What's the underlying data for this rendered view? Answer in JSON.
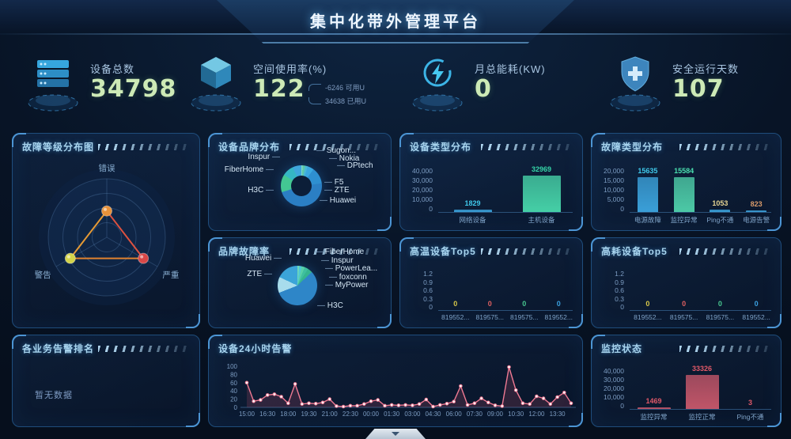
{
  "header": {
    "title": "集中化带外管理平台"
  },
  "kpis": [
    {
      "icon": "server-icon",
      "label": "设备总数",
      "value": "34798"
    },
    {
      "icon": "cube-icon",
      "label": "空间使用率(%)",
      "value": "122",
      "legend": [
        {
          "text": "-6246 可用U"
        },
        {
          "text": "34638 已用U"
        }
      ]
    },
    {
      "icon": "energy-icon",
      "label": "月总能耗(KW)",
      "value": "0"
    },
    {
      "icon": "shield-icon",
      "label": "安全运行天数",
      "value": "107"
    }
  ],
  "footer": {
    "collapse_tab": "chevron-down"
  },
  "colors": {
    "accent_cyan": "#3fc6f0",
    "bar_blue": "#3a9fd8",
    "bar_green": "#4cc9a6",
    "bar_red": "#c05568",
    "line_pink": "#ef7a93",
    "kpi_value_green": "#cdeab6",
    "panel_border": "#1f4d7c",
    "panel_title": "#a8d4ee"
  },
  "chart_data": [
    {
      "id": "fault_level",
      "type": "radar",
      "title": "故障等级分布图",
      "axes": [
        "错误",
        "严重",
        "警告"
      ],
      "values_pct": [
        45,
        72,
        72
      ],
      "max": 100,
      "point_colors": [
        "#e8923a",
        "#d84848",
        "#d4d44a"
      ],
      "note": "radius values estimated from plot"
    },
    {
      "id": "device_brand",
      "type": "pie",
      "variant": "donut",
      "title": "设备品牌分布",
      "series": [
        {
          "name": "Sugon...",
          "pct": 1,
          "color": "#7fd8c8"
        },
        {
          "name": "Nokia",
          "pct": 2,
          "color": "#5bc8a8"
        },
        {
          "name": "DPtech",
          "pct": 2,
          "color": "#49b8d8"
        },
        {
          "name": "F5",
          "pct": 5,
          "color": "#3aa8e0"
        },
        {
          "name": "ZTE",
          "pct": 13,
          "color": "#2e8fd0"
        },
        {
          "name": "Huawei",
          "pct": 47,
          "color": "#2b7fc4"
        },
        {
          "name": "H3C",
          "pct": 14,
          "color": "#43c793"
        },
        {
          "name": "FiberHome",
          "pct": 9,
          "color": "#35b6c4"
        },
        {
          "name": "Inspur",
          "pct": 7,
          "color": "#3fa6dc"
        }
      ],
      "note": "percentages estimated from arc sizes"
    },
    {
      "id": "device_type",
      "type": "bar",
      "title": "设备类型分布",
      "categories": [
        "网络设备",
        "主机设备"
      ],
      "values": [
        1829,
        32969
      ],
      "value_labels": [
        "1829",
        "32969"
      ],
      "ymax": 40000,
      "yticks": [
        "40,000",
        "30,000",
        "20,000",
        "10,000",
        "0"
      ],
      "bar_colors": [
        "#3a9fd8",
        "#45cfa6"
      ],
      "value_colors": [
        "#3fc8ea",
        "#35d4a8"
      ]
    },
    {
      "id": "fault_type",
      "type": "bar",
      "title": "故障类型分布",
      "categories": [
        "电源故障",
        "监控异常",
        "Ping不通",
        "电源告警"
      ],
      "values": [
        15635,
        15584,
        1053,
        823
      ],
      "value_labels": [
        "15635",
        "15584",
        "1053",
        "823"
      ],
      "ymax": 20000,
      "yticks": [
        "20,000",
        "15,000",
        "10,000",
        "5,000",
        "0"
      ],
      "bar_colors": [
        "#3a9fd8",
        "#4cc9a6",
        "#3a9fd8",
        "#3a9fd8"
      ],
      "value_colors": [
        "#3fc8ea",
        "#4ae0b0",
        "#e5d492",
        "#d99a6a"
      ]
    },
    {
      "id": "brand_fault_rate",
      "type": "pie",
      "variant": "pie",
      "title": "品牌故障率",
      "series": [
        {
          "name": "FiberHome",
          "pct": 1.5,
          "color": "#6fd8b8"
        },
        {
          "name": "Inspur",
          "pct": 2,
          "color": "#4fc8d8"
        },
        {
          "name": "PowerLea...",
          "pct": 2.5,
          "color": "#58d0a8"
        },
        {
          "name": "foxconn",
          "pct": 3,
          "color": "#3fbf9f"
        },
        {
          "name": "MyPower",
          "pct": 4,
          "color": "#35b48f"
        },
        {
          "name": "H3C",
          "pct": 56,
          "color": "#2e86c8"
        },
        {
          "name": "ZTE",
          "pct": 13,
          "color": "#a8dcec"
        },
        {
          "name": "Huawei",
          "pct": 18,
          "color": "#3ba4d8"
        }
      ],
      "note": "percentages estimated from arc sizes"
    },
    {
      "id": "high_temp_top5",
      "type": "bar",
      "title": "高温设备Top5",
      "categories": [
        "819552...",
        "819575...",
        "819575...",
        "819552..."
      ],
      "values": [
        0,
        0,
        0,
        0
      ],
      "value_labels": [
        "0",
        "0",
        "0",
        "0"
      ],
      "ymax": 1.2,
      "yticks": [
        "1.2",
        "0.9",
        "0.6",
        "0.3",
        "0"
      ],
      "bar_colors": [
        "#d8c84a",
        "#e06060",
        "#48c890",
        "#3aa0e0"
      ],
      "value_colors": [
        "#d8c84a",
        "#e06060",
        "#48c890",
        "#3aa0e0"
      ]
    },
    {
      "id": "high_power_top5",
      "type": "bar",
      "title": "高耗设备Top5",
      "categories": [
        "819552...",
        "819575...",
        "819575...",
        "819552..."
      ],
      "values": [
        0,
        0,
        0,
        0
      ],
      "value_labels": [
        "0",
        "0",
        "0",
        "0"
      ],
      "ymax": 1.2,
      "yticks": [
        "1.2",
        "0.9",
        "0.6",
        "0.3",
        "0"
      ],
      "bar_colors": [
        "#d8c84a",
        "#e06060",
        "#48c890",
        "#3aa0e0"
      ],
      "value_colors": [
        "#d8c84a",
        "#e06060",
        "#48c890",
        "#3aa0e0"
      ]
    },
    {
      "id": "biz_alarm_rank",
      "type": "none",
      "title": "各业务告警排名",
      "no_data": "暂无数据"
    },
    {
      "id": "alarms_24h",
      "type": "line",
      "title": "设备24小时告警",
      "ymax": 100,
      "yticks": [
        "0",
        "20",
        "40",
        "60",
        "80",
        "100"
      ],
      "x_tick_labels": [
        "15:00",
        "16:30",
        "18:00",
        "19:30",
        "21:00",
        "22:30",
        "00:00",
        "01:30",
        "03:00",
        "04:30",
        "06:00",
        "07:30",
        "09:00",
        "10:30",
        "12:00",
        "13:30"
      ],
      "values": [
        60,
        15,
        18,
        30,
        32,
        26,
        10,
        57,
        8,
        10,
        9,
        12,
        20,
        3,
        2,
        4,
        4,
        8,
        15,
        18,
        4,
        6,
        5,
        6,
        5,
        8,
        19,
        2,
        6,
        9,
        14,
        52,
        6,
        10,
        22,
        12,
        5,
        3,
        98,
        42,
        10,
        8,
        27,
        22,
        8,
        25,
        36,
        10
      ],
      "note": "30-minute samples, values estimated from plot"
    },
    {
      "id": "monitor_status",
      "type": "bar",
      "title": "监控状态",
      "categories": [
        "监控异常",
        "监控正常",
        "Ping不通"
      ],
      "values": [
        1469,
        33326,
        3
      ],
      "value_labels": [
        "1469",
        "33326",
        "3"
      ],
      "ymax": 40000,
      "yticks": [
        "40,000",
        "30,000",
        "20,000",
        "10,000",
        "0"
      ],
      "bar_colors": [
        "#c05568",
        "#c05568",
        "#c05568"
      ],
      "value_colors": [
        "#e05868",
        "#e05868",
        "#e05868"
      ]
    }
  ]
}
